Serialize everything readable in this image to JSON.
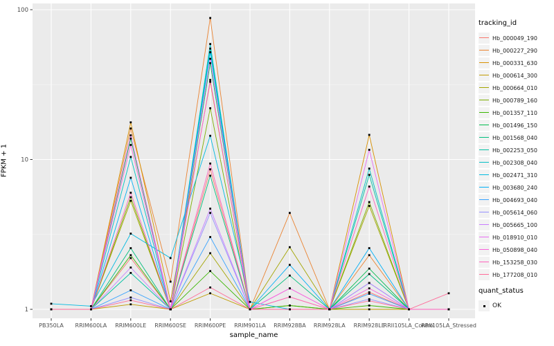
{
  "figure": {
    "panel_bg": "#EBEBEB",
    "grid_major_color": "#FFFFFF",
    "grid_minor_color": "#F7F7F7",
    "tick_mark_color": "#333333",
    "tick_label_color": "#4D4D4D",
    "point_color": "#000000"
  },
  "legend": {
    "tracking_title": "tracking_id",
    "quant_title": "quant_status",
    "quant_items": [
      {
        "label": "OK"
      }
    ]
  },
  "chart_data": {
    "type": "line",
    "title": "",
    "xlabel": "sample_name",
    "ylabel": "FPKM + 1",
    "y_scale": "log10",
    "y_ticks": [
      1,
      10,
      100
    ],
    "y_minor": [
      3.162,
      31.62
    ],
    "ylim": [
      0.93,
      105
    ],
    "grid": true,
    "legend_position": "right",
    "point_marker": "small-black-square",
    "categories": [
      "PB350LA",
      "RRIM600LA",
      "RRIM600LE",
      "RRIM600SE",
      "RRIM600PE",
      "RRIM901LA",
      "RRIM928BA",
      "RRIM928LA",
      "RRIM928LE",
      "RRII105LA_Control",
      "RRII105LA_Stressed"
    ],
    "series": [
      {
        "name": "Hb_000049_190",
        "color": "#F8766D",
        "values": [
          1,
          1,
          2.2,
          1,
          8.6,
          1,
          1.21,
          1,
          1.3,
          1,
          1
        ]
      },
      {
        "name": "Hb_000227_290",
        "color": "#EA8331",
        "values": [
          1,
          1,
          16.1,
          1.53,
          88,
          1,
          4.4,
          1,
          2.3,
          1,
          1
        ]
      },
      {
        "name": "Hb_000331_630",
        "color": "#D89000",
        "values": [
          1,
          1,
          17.7,
          1.13,
          33,
          1,
          1,
          1,
          14.6,
          1,
          1
        ]
      },
      {
        "name": "Hb_000614_300",
        "color": "#C09B00",
        "values": [
          1,
          1,
          1.08,
          1,
          1.28,
          1,
          1,
          1,
          1,
          1,
          1
        ]
      },
      {
        "name": "Hb_000664_010",
        "color": "#A3A500",
        "values": [
          1,
          1,
          5.3,
          1,
          2.37,
          1,
          2.6,
          1,
          4.9,
          1,
          1
        ]
      },
      {
        "name": "Hb_000789_160",
        "color": "#7CAE00",
        "values": [
          1,
          1,
          5.6,
          1,
          22,
          1,
          1.06,
          1,
          5.2,
          1,
          1
        ]
      },
      {
        "name": "Hb_001357_110",
        "color": "#39B600",
        "values": [
          1,
          1,
          2.3,
          1,
          1.8,
          1,
          1.06,
          1,
          1.06,
          1,
          1
        ]
      },
      {
        "name": "Hb_001496_150",
        "color": "#00BB4E",
        "values": [
          1,
          1,
          13.8,
          1,
          44,
          1,
          1,
          1,
          1.87,
          1,
          1
        ]
      },
      {
        "name": "Hb_001568_040",
        "color": "#00BF7D",
        "values": [
          1,
          1,
          2.56,
          1,
          7.8,
          1,
          1.68,
          1,
          1.72,
          1,
          1
        ]
      },
      {
        "name": "Hb_002253_050",
        "color": "#00C1A3",
        "values": [
          1,
          1,
          1.75,
          1,
          55,
          1,
          1,
          1,
          7.9,
          1,
          1
        ]
      },
      {
        "name": "Hb_002308_040",
        "color": "#00BFC4",
        "values": [
          1,
          1,
          10.4,
          1,
          59,
          1,
          1,
          1,
          8.7,
          1,
          1
        ]
      },
      {
        "name": "Hb_002471_310",
        "color": "#00BAE0",
        "values": [
          1.09,
          1.05,
          3.2,
          2.2,
          14.4,
          1.12,
          1,
          1,
          1.5,
          1,
          1
        ]
      },
      {
        "name": "Hb_003680_240",
        "color": "#00B0F6",
        "values": [
          1,
          1,
          7.55,
          1,
          52,
          1,
          1.98,
          1,
          2.56,
          1,
          1
        ]
      },
      {
        "name": "Hb_004693_040",
        "color": "#35A2FF",
        "values": [
          1,
          1,
          1.34,
          1,
          3.04,
          1,
          1,
          1,
          1.27,
          1,
          1
        ]
      },
      {
        "name": "Hb_005614_060",
        "color": "#9590FF",
        "values": [
          1,
          1,
          1.2,
          1,
          4.4,
          1,
          1,
          1,
          1.17,
          1,
          1
        ]
      },
      {
        "name": "Hb_005665_100",
        "color": "#C77CFF",
        "values": [
          1,
          1,
          1.9,
          1,
          4.7,
          1,
          1,
          1,
          1.5,
          1,
          1
        ]
      },
      {
        "name": "Hb_018910_010",
        "color": "#E76BF3",
        "values": [
          1,
          1,
          14.5,
          1,
          47,
          1,
          1.38,
          1,
          11.6,
          1,
          1
        ]
      },
      {
        "name": "Hb_050898_040",
        "color": "#FA62DB",
        "values": [
          1,
          1,
          12.5,
          1,
          34,
          1,
          1.38,
          1,
          1.38,
          1,
          1
        ]
      },
      {
        "name": "Hb_153258_030",
        "color": "#FF62BC",
        "values": [
          1,
          1,
          6.0,
          1,
          9.4,
          1,
          1.21,
          1,
          6.6,
          1,
          1
        ]
      },
      {
        "name": "Hb_177208_010",
        "color": "#FF6A98",
        "values": [
          1,
          1,
          1.15,
          1,
          1.4,
          1,
          1,
          1,
          1.14,
          1,
          1.28
        ]
      }
    ]
  }
}
